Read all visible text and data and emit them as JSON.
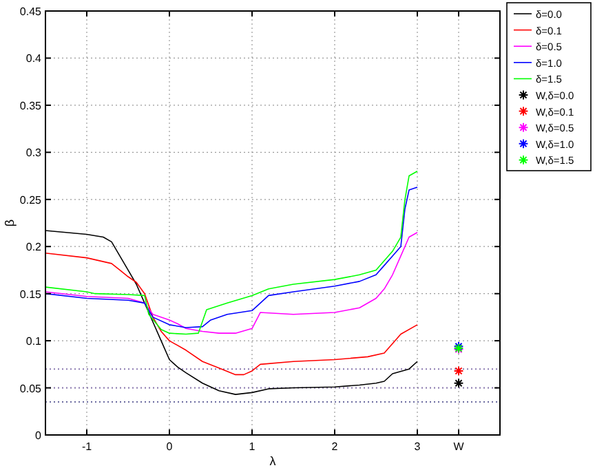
{
  "chart_data": {
    "type": "line",
    "xlabel": "λ",
    "ylabel": "β",
    "xlim": [
      -1.5,
      4
    ],
    "ylim": [
      0,
      0.45
    ],
    "xticks": [
      -1,
      0,
      1,
      2,
      3,
      {
        "value": 3.5,
        "label": "W"
      }
    ],
    "yticks": [
      0,
      0.05,
      0.1,
      0.15,
      0.2,
      0.25,
      0.3,
      0.35,
      0.4,
      0.45
    ],
    "grid": true,
    "legend": "top right",
    "marker": "none",
    "line_style": "solid",
    "series": [
      {
        "name": "δ=0.0",
        "color": "#000000",
        "x": [
          -1.5,
          -1,
          -0.8,
          -0.7,
          -0.6,
          -0.5,
          -0.4,
          -0.3,
          -0.2,
          -0.1,
          0,
          0.1,
          0.2,
          0.4,
          0.6,
          0.8,
          1,
          1.2,
          1.5,
          2,
          2.3,
          2.5,
          2.6,
          2.7,
          2.9,
          3
        ],
        "values": [
          0.217,
          0.213,
          0.21,
          0.205,
          0.19,
          0.175,
          0.16,
          0.14,
          0.12,
          0.1,
          0.08,
          0.072,
          0.066,
          0.055,
          0.047,
          0.043,
          0.045,
          0.049,
          0.05,
          0.051,
          0.053,
          0.055,
          0.057,
          0.065,
          0.07,
          0.078
        ]
      },
      {
        "name": "δ=0.1",
        "color": "#ff0000",
        "x": [
          -1.5,
          -1,
          -0.7,
          -0.6,
          -0.5,
          -0.4,
          -0.3,
          -0.2,
          -0.1,
          0,
          0.2,
          0.4,
          0.6,
          0.8,
          0.9,
          1,
          1.1,
          1.5,
          2,
          2.4,
          2.6,
          2.7,
          2.8,
          3
        ],
        "values": [
          0.193,
          0.188,
          0.182,
          0.175,
          0.168,
          0.162,
          0.15,
          0.125,
          0.11,
          0.1,
          0.09,
          0.078,
          0.071,
          0.064,
          0.064,
          0.068,
          0.075,
          0.078,
          0.08,
          0.083,
          0.087,
          0.097,
          0.107,
          0.117
        ]
      },
      {
        "name": "δ=0.5",
        "color": "#ff00ff",
        "x": [
          -1.5,
          -1,
          -0.5,
          -0.3,
          -0.2,
          0,
          0.1,
          0.2,
          0.4,
          0.6,
          0.8,
          1,
          1.1,
          1.5,
          2,
          2.3,
          2.5,
          2.6,
          2.7,
          2.8,
          2.9,
          3
        ],
        "values": [
          0.152,
          0.147,
          0.145,
          0.14,
          0.128,
          0.122,
          0.118,
          0.113,
          0.11,
          0.108,
          0.108,
          0.113,
          0.13,
          0.128,
          0.13,
          0.135,
          0.145,
          0.155,
          0.17,
          0.19,
          0.21,
          0.215
        ]
      },
      {
        "name": "δ=1.0",
        "color": "#0000ff",
        "x": [
          -1.5,
          -1,
          -0.5,
          -0.3,
          -0.2,
          0,
          0.2,
          0.4,
          0.5,
          0.7,
          1,
          1.2,
          1.5,
          2,
          2.3,
          2.5,
          2.6,
          2.7,
          2.8,
          2.85,
          2.9,
          3
        ],
        "values": [
          0.15,
          0.145,
          0.143,
          0.14,
          0.125,
          0.117,
          0.114,
          0.115,
          0.122,
          0.128,
          0.132,
          0.148,
          0.152,
          0.158,
          0.163,
          0.17,
          0.18,
          0.19,
          0.2,
          0.24,
          0.26,
          0.263
        ]
      },
      {
        "name": "δ=1.5",
        "color": "#00ff00",
        "x": [
          -1.5,
          -1,
          -0.9,
          -0.5,
          -0.3,
          -0.25,
          -0.1,
          0,
          0.2,
          0.35,
          0.45,
          0.7,
          1,
          1.2,
          1.5,
          2,
          2.3,
          2.5,
          2.6,
          2.7,
          2.8,
          2.85,
          2.9,
          3
        ],
        "values": [
          0.157,
          0.152,
          0.15,
          0.149,
          0.148,
          0.128,
          0.112,
          0.108,
          0.107,
          0.108,
          0.133,
          0.14,
          0.148,
          0.155,
          0.16,
          0.165,
          0.17,
          0.175,
          0.185,
          0.195,
          0.21,
          0.25,
          0.275,
          0.28
        ]
      },
      {
        "name": "W,δ=0.0",
        "type": "scatter",
        "marker": "cross",
        "color": "#000000",
        "x": [
          3.5
        ],
        "values": [
          0.055
        ]
      },
      {
        "name": "W,δ=0.1",
        "type": "scatter",
        "marker": "cross",
        "color": "#ff0000",
        "x": [
          3.5
        ],
        "values": [
          0.068
        ]
      },
      {
        "name": "W,δ=0.5",
        "type": "scatter",
        "marker": "cross",
        "color": "#ff00ff",
        "x": [
          3.5
        ],
        "values": [
          0.091
        ]
      },
      {
        "name": "W,δ=1.0",
        "type": "scatter",
        "marker": "cross",
        "color": "#0000ff",
        "x": [
          3.5
        ],
        "values": [
          0.094
        ]
      },
      {
        "name": "W,δ=1.5",
        "type": "scatter",
        "marker": "cross",
        "color": "#00ff00",
        "x": [
          3.5
        ],
        "values": [
          0.092
        ]
      }
    ],
    "ref_lines": [
      {
        "axis": "y",
        "value": 0.07,
        "color": "#8a78b0",
        "line_style": "dotted"
      },
      {
        "axis": "y",
        "value": 0.05,
        "color": "#8a78b0",
        "line_style": "dotted"
      },
      {
        "axis": "y",
        "value": 0.035,
        "color": "#6a6aa0",
        "line_style": "dotted"
      }
    ]
  }
}
